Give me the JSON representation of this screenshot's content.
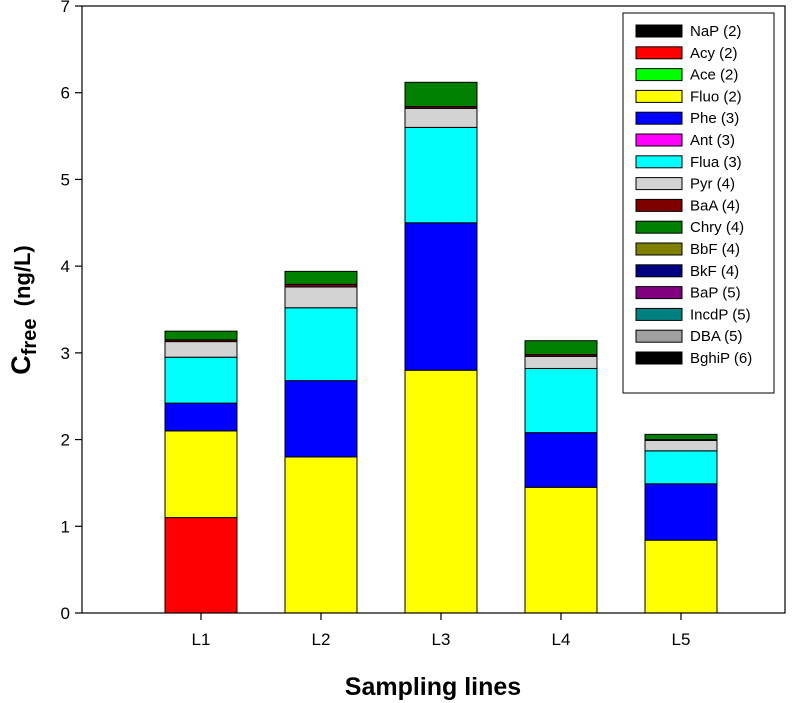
{
  "chart_data": {
    "type": "bar",
    "stacked": true,
    "title": "",
    "xlabel": "Sampling lines",
    "ylabel": {
      "main": "C",
      "subscript": "free",
      "rest": "  (ng/L)"
    },
    "categories": [
      "L1",
      "L2",
      "L3",
      "L4",
      "L5"
    ],
    "ylim": [
      0,
      7
    ],
    "yticks": [
      0,
      1,
      2,
      3,
      4,
      5,
      6,
      7
    ],
    "grid": false,
    "legend_position": "top-right",
    "series": [
      {
        "name": "NaP (2)",
        "color": "#000000",
        "values": [
          0,
          0,
          0,
          0,
          0
        ]
      },
      {
        "name": "Acy (2)",
        "color": "#ff0000",
        "values": [
          1.1,
          0,
          0,
          0,
          0
        ]
      },
      {
        "name": "Ace (2)",
        "color": "#00ff00",
        "values": [
          0,
          0,
          0,
          0,
          0
        ]
      },
      {
        "name": "Fluo (2)",
        "color": "#ffff00",
        "values": [
          1.0,
          1.8,
          2.8,
          1.45,
          0.84
        ]
      },
      {
        "name": "Phe (3)",
        "color": "#0000ff",
        "values": [
          0.32,
          0.88,
          1.7,
          0.63,
          0.65
        ]
      },
      {
        "name": "Ant  (3)",
        "color": "#ff00ff",
        "values": [
          0,
          0,
          0,
          0,
          0
        ]
      },
      {
        "name": "Flua (3)",
        "color": "#00ffff",
        "values": [
          0.53,
          0.84,
          1.1,
          0.74,
          0.38
        ]
      },
      {
        "name": "Pyr (4)",
        "color": "#d3d3d3",
        "values": [
          0.18,
          0.24,
          0.22,
          0.14,
          0.12
        ]
      },
      {
        "name": "BaA (4)",
        "color": "#800000",
        "values": [
          0.02,
          0.03,
          0.02,
          0.02,
          0.01
        ]
      },
      {
        "name": "Chry (4)",
        "color": "#007f00",
        "values": [
          0.1,
          0.15,
          0.28,
          0.16,
          0.06
        ]
      },
      {
        "name": "BbF (4)",
        "color": "#808000",
        "values": [
          0,
          0,
          0,
          0,
          0
        ]
      },
      {
        "name": "BkF (4)",
        "color": "#000080",
        "values": [
          0,
          0,
          0,
          0,
          0
        ]
      },
      {
        "name": "BaP (5)",
        "color": "#800080",
        "values": [
          0,
          0,
          0,
          0,
          0
        ]
      },
      {
        "name": "IncdP (5)",
        "color": "#008080",
        "values": [
          0,
          0,
          0,
          0,
          0
        ]
      },
      {
        "name": "DBA (5)",
        "color": "#a0a0a0",
        "values": [
          0,
          0,
          0,
          0,
          0
        ]
      },
      {
        "name": "BghiP (6)",
        "color": "#000000",
        "values": [
          0,
          0,
          0,
          0,
          0
        ]
      }
    ]
  }
}
